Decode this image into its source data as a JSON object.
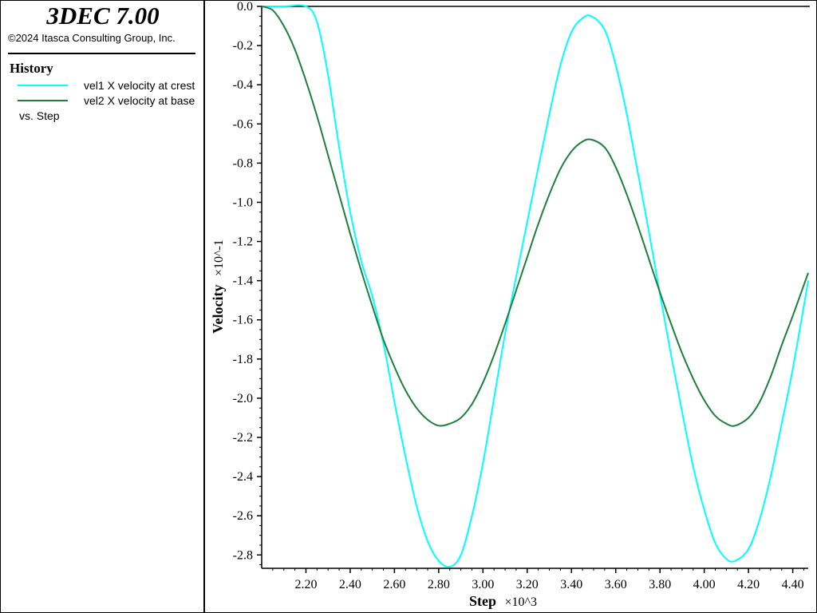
{
  "header": {
    "app_title": "3DEC 7.00",
    "copyright": "©2024 Itasca Consulting Group, Inc."
  },
  "legend": {
    "heading": "History",
    "items": [
      {
        "label": "vel1 X velocity at crest",
        "color": "#00ffff"
      },
      {
        "label": "vel2 X velocity at base",
        "color": "#1e7f3c"
      }
    ],
    "vs_label": "vs. Step"
  },
  "chart_data": {
    "type": "line",
    "xlabel": "Step",
    "xlabel_scale": "×10^3",
    "ylabel": "Velocity",
    "ylabel_scale": "×10^-1",
    "x_ticks": [
      2.2,
      2.4,
      2.6,
      2.8,
      3.0,
      3.2,
      3.4,
      3.6,
      3.8,
      4.0,
      4.2,
      4.4
    ],
    "x_tick_labels": [
      "2.20",
      "2.40",
      "2.60",
      "2.80",
      "3.00",
      "3.20",
      "3.40",
      "3.60",
      "3.80",
      "4.00",
      "4.20",
      "4.40"
    ],
    "y_ticks": [
      0,
      -0.2,
      -0.4,
      -0.6,
      -0.8,
      -1.0,
      -1.2,
      -1.4,
      -1.6,
      -1.8,
      -2.0,
      -2.2,
      -2.4,
      -2.6,
      -2.8
    ],
    "y_tick_labels": [
      "0.0",
      "-0.2",
      "-0.4",
      "-0.6",
      "-0.8",
      "-1.0",
      "-1.2",
      "-1.4",
      "-1.6",
      "-1.8",
      "-2.0",
      "-2.2",
      "-2.4",
      "-2.6",
      "-2.8"
    ],
    "xlim": [
      2.0,
      4.47
    ],
    "ylim": [
      -2.86,
      0.0
    ],
    "series": [
      {
        "name": "vel1 X velocity at crest",
        "color": "#00ffff",
        "x": [
          2.0,
          2.1,
          2.2,
          2.25,
          2.3,
          2.35,
          2.4,
          2.45,
          2.5,
          2.55,
          2.6,
          2.65,
          2.7,
          2.75,
          2.8,
          2.85,
          2.9,
          2.95,
          3.0,
          3.05,
          3.1,
          3.15,
          3.2,
          3.25,
          3.3,
          3.35,
          3.4,
          3.45,
          3.49,
          3.55,
          3.6,
          3.65,
          3.7,
          3.75,
          3.8,
          3.85,
          3.9,
          3.95,
          4.0,
          4.05,
          4.1,
          4.14,
          4.2,
          4.25,
          4.3,
          4.35,
          4.4,
          4.47
        ],
        "y": [
          0.0,
          0.0,
          0.0,
          -0.08,
          -0.35,
          -0.72,
          -1.05,
          -1.3,
          -1.48,
          -1.72,
          -2.02,
          -2.3,
          -2.55,
          -2.73,
          -2.83,
          -2.86,
          -2.8,
          -2.6,
          -2.33,
          -2.0,
          -1.67,
          -1.38,
          -1.1,
          -0.82,
          -0.55,
          -0.3,
          -0.13,
          -0.06,
          -0.05,
          -0.12,
          -0.3,
          -0.55,
          -0.85,
          -1.15,
          -1.47,
          -1.78,
          -2.07,
          -2.35,
          -2.57,
          -2.74,
          -2.82,
          -2.83,
          -2.77,
          -2.62,
          -2.4,
          -2.13,
          -1.85,
          -1.4
        ]
      },
      {
        "name": "vel2 X velocity at base",
        "color": "#1e7f3c",
        "x": [
          2.0,
          2.05,
          2.1,
          2.15,
          2.2,
          2.25,
          2.3,
          2.35,
          2.4,
          2.45,
          2.5,
          2.55,
          2.6,
          2.65,
          2.7,
          2.75,
          2.8,
          2.85,
          2.9,
          2.95,
          3.0,
          3.05,
          3.1,
          3.15,
          3.2,
          3.25,
          3.3,
          3.35,
          3.4,
          3.45,
          3.49,
          3.55,
          3.6,
          3.65,
          3.7,
          3.75,
          3.8,
          3.85,
          3.9,
          3.95,
          4.0,
          4.05,
          4.1,
          4.14,
          4.2,
          4.25,
          4.3,
          4.35,
          4.4,
          4.47
        ],
        "y": [
          0.0,
          -0.02,
          -0.1,
          -0.22,
          -0.38,
          -0.56,
          -0.76,
          -0.96,
          -1.16,
          -1.35,
          -1.53,
          -1.7,
          -1.84,
          -1.96,
          -2.05,
          -2.11,
          -2.14,
          -2.13,
          -2.1,
          -2.03,
          -1.92,
          -1.78,
          -1.62,
          -1.45,
          -1.28,
          -1.11,
          -0.96,
          -0.83,
          -0.74,
          -0.69,
          -0.68,
          -0.72,
          -0.82,
          -0.96,
          -1.12,
          -1.29,
          -1.46,
          -1.62,
          -1.77,
          -1.9,
          -2.01,
          -2.09,
          -2.13,
          -2.14,
          -2.1,
          -2.02,
          -1.89,
          -1.73,
          -1.58,
          -1.36
        ]
      }
    ]
  }
}
